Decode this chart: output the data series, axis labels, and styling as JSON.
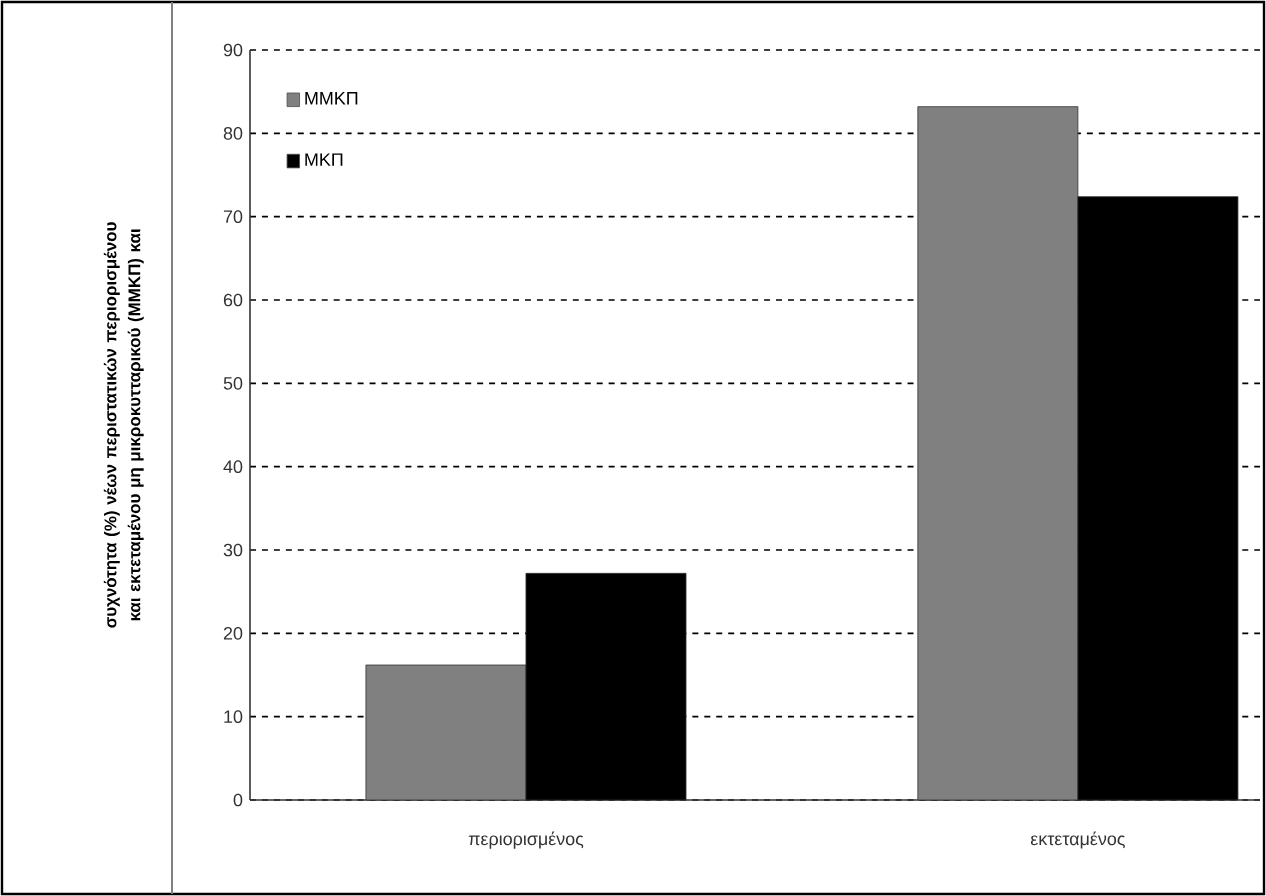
{
  "chart_data": {
    "type": "bar",
    "ylabel": "συχνότητα (%) νέων περιστατικών περιορισμένου και εκτεταμένου μη μικροκυτταρικού (ΜΜΚΠ) και",
    "categories": [
      "περιορισμένος",
      "εκτεταμένος"
    ],
    "series": [
      {
        "name": "ΜΜΚΠ",
        "color": "#808080",
        "values": [
          16.2,
          83.2
        ]
      },
      {
        "name": "ΜΚΠ",
        "color": "#000000",
        "values": [
          27.2,
          72.4
        ]
      }
    ],
    "ylim": [
      0,
      90
    ],
    "yticks": [
      0,
      10,
      20,
      30,
      40,
      50,
      60,
      70,
      80,
      90
    ],
    "grid": "y",
    "legend": "top left"
  }
}
